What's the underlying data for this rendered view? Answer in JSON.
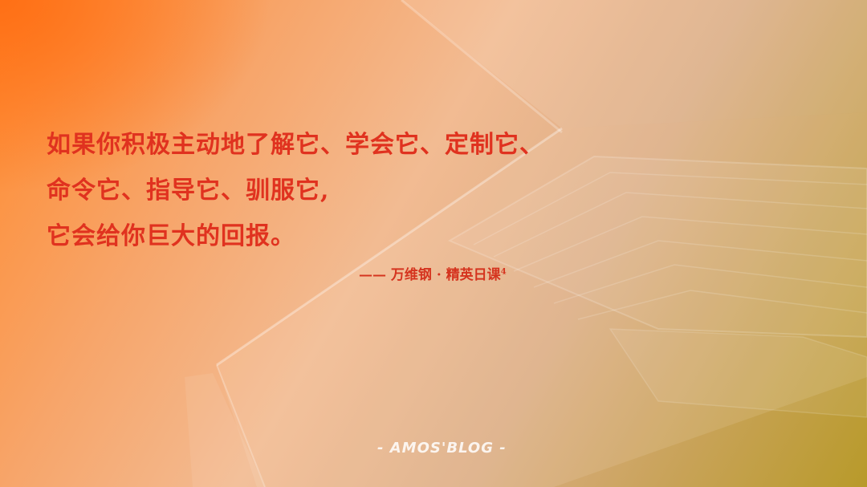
{
  "quote": {
    "line1": "如果你积极主动地了解它、学会它、定制它、",
    "line2": "命令它、指导它、驯服它,",
    "line3": "它会给你巨大的回报。"
  },
  "attribution": {
    "text": "—— 万维钢 · 精英日课",
    "superscript": "4"
  },
  "watermark": "- AMOS'BLOG -",
  "colors": {
    "quote_text": "#e0321f",
    "gradient_start": "#ff7a1a",
    "gradient_end": "#b89a2a"
  },
  "image": {
    "subject": "laptop-keyboard-photo"
  }
}
